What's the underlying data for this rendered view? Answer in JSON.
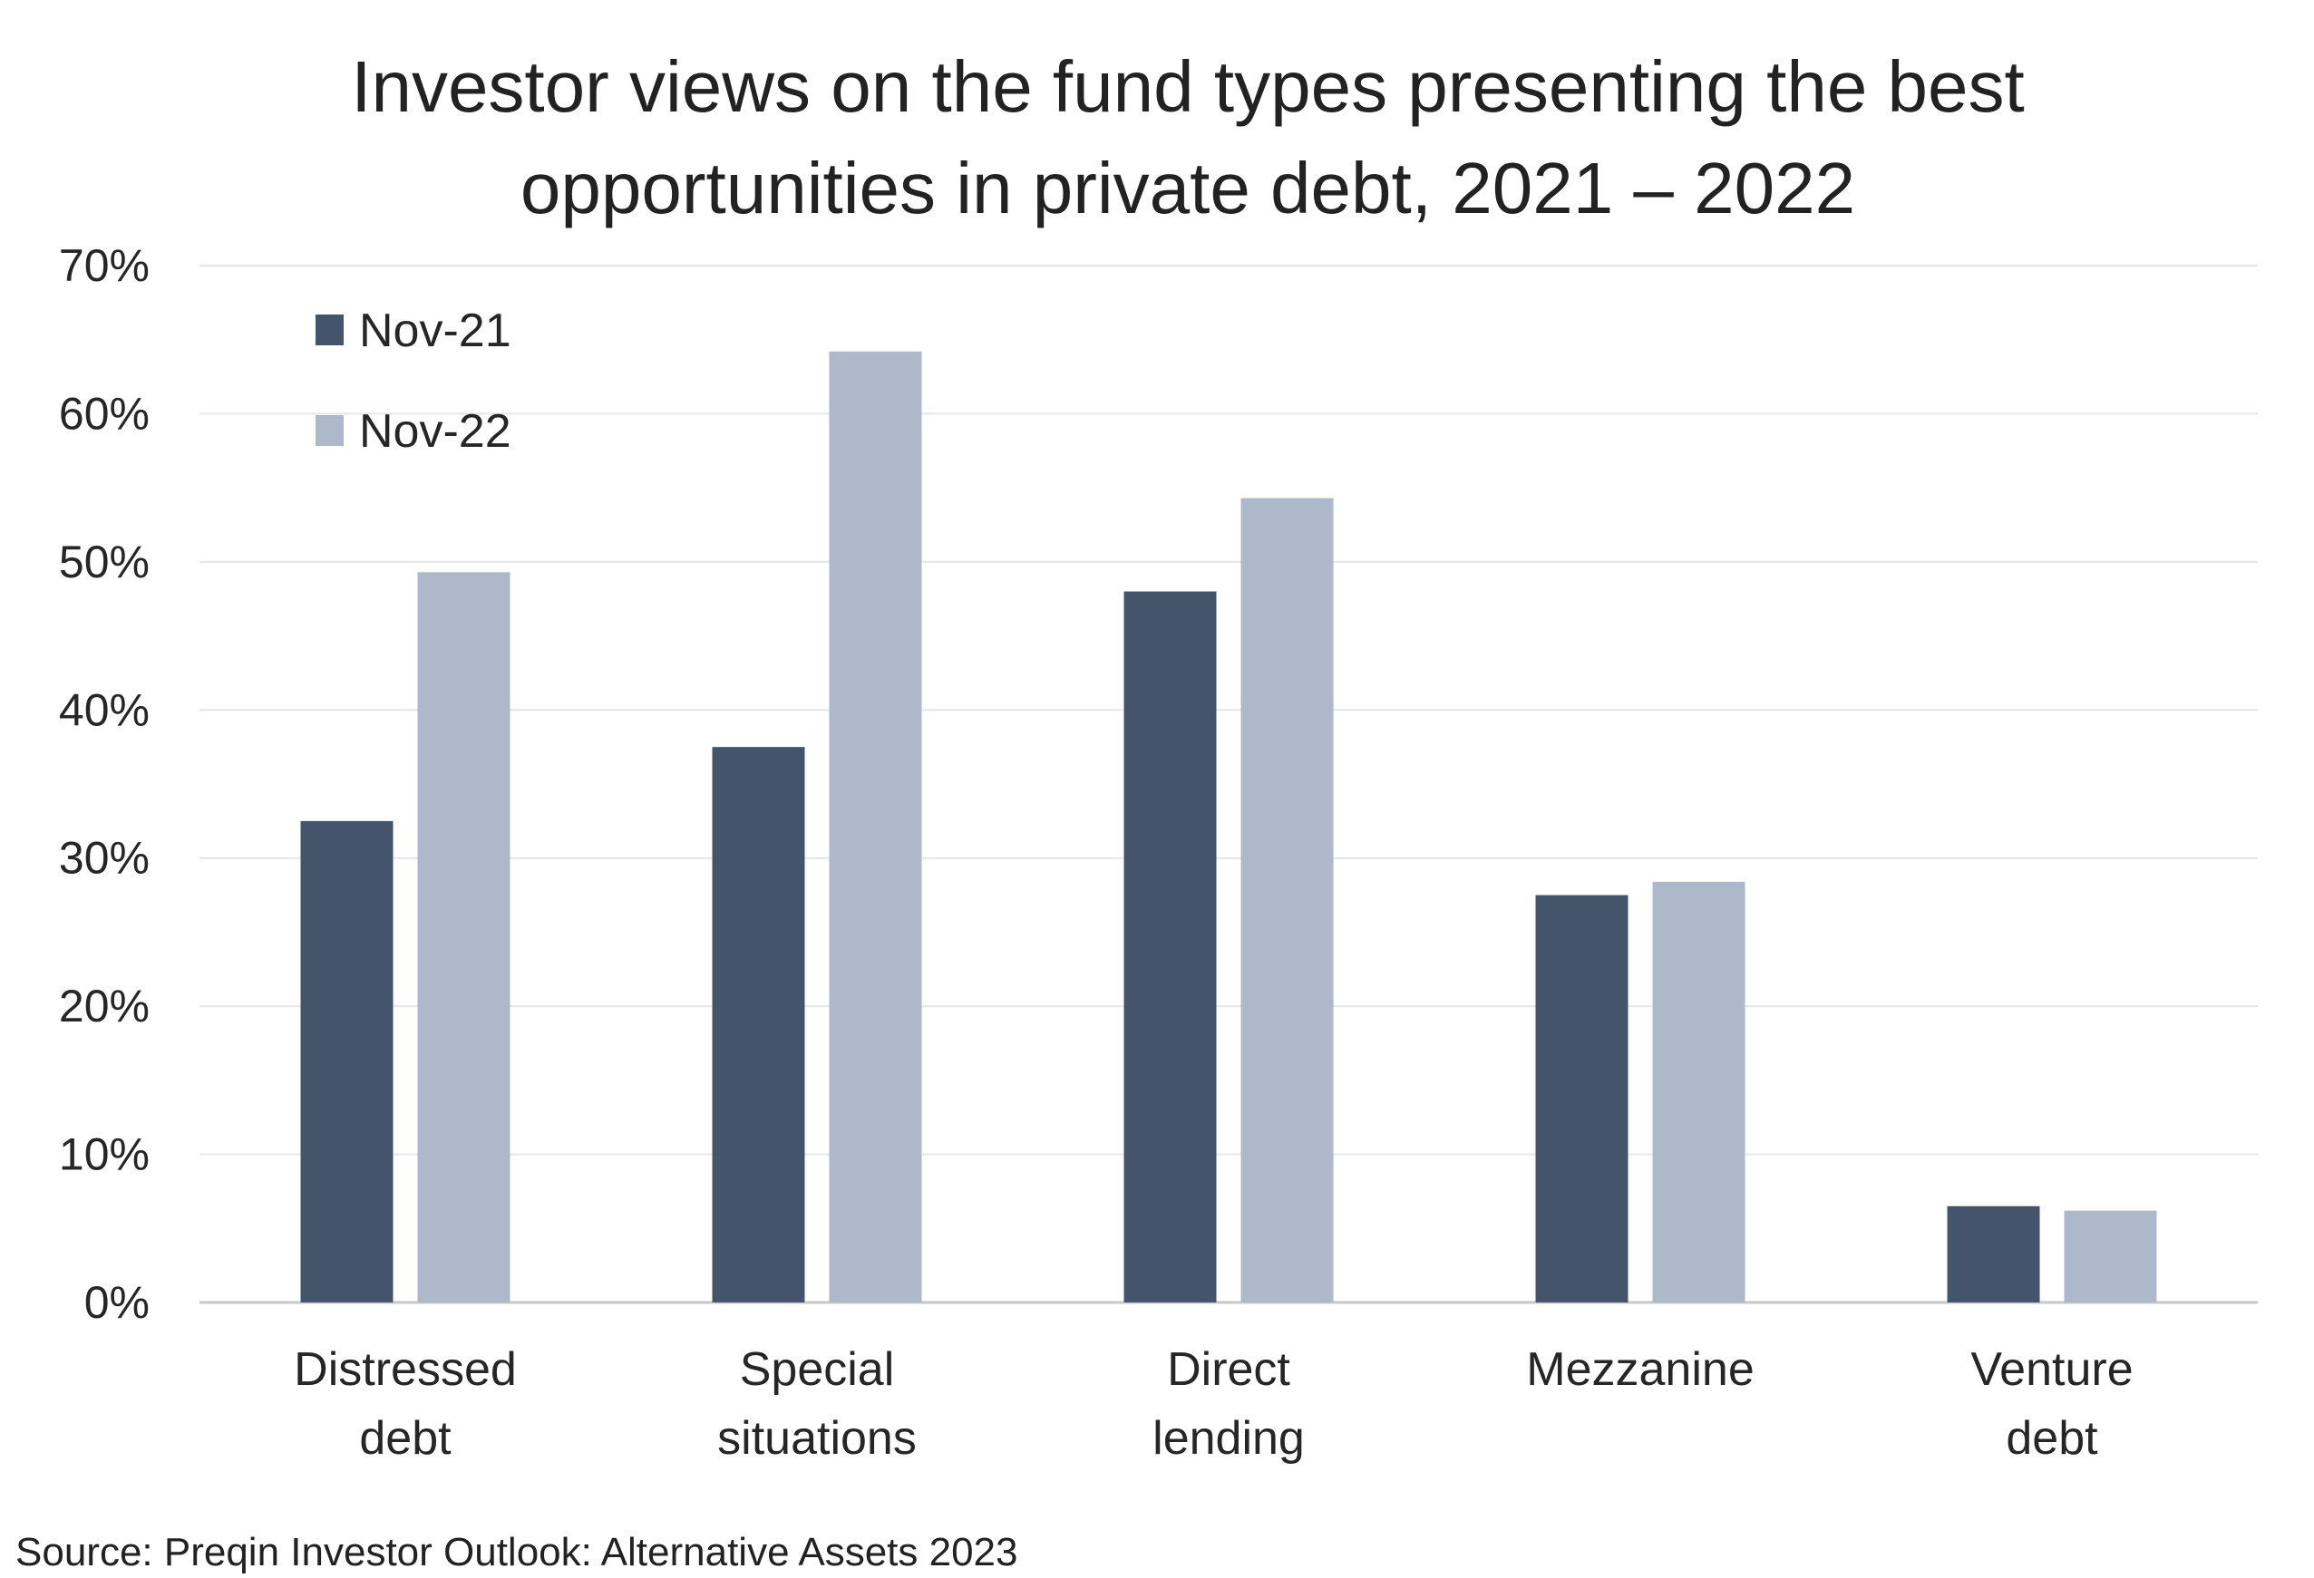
{
  "chart_data": {
    "type": "bar",
    "title_lines": [
      "Investor views on the fund types presenting the best",
      "opportunities in private debt, 2021 – 2022"
    ],
    "categories": [
      [
        "Distressed",
        "debt"
      ],
      [
        "Special",
        "situations"
      ],
      [
        "Direct",
        "lending"
      ],
      [
        "Mezzanine"
      ],
      [
        "Venture",
        "debt"
      ]
    ],
    "series": [
      {
        "name": "Nov-21",
        "color": "#44546a",
        "values": [
          32.5,
          37.5,
          48.0,
          27.5,
          6.5
        ]
      },
      {
        "name": "Nov-22",
        "color": "#adb8ca",
        "values": [
          49.3,
          64.2,
          54.3,
          28.4,
          6.2
        ]
      }
    ],
    "y_ticks": [
      "0%",
      "10%",
      "20%",
      "30%",
      "40%",
      "50%",
      "60%",
      "70%"
    ],
    "ylim": [
      0,
      70
    ],
    "ystep": 10,
    "legend_position": "top-left",
    "grid": true
  },
  "source": "Source: Preqin Investor Outlook: Alternative Assets 2023"
}
